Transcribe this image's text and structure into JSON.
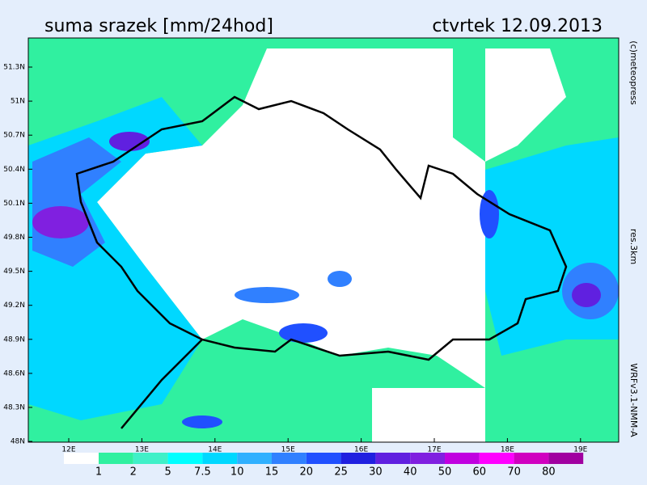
{
  "header": {
    "title": "suma srazek [mm/24hod]",
    "date": "ctvrtek 12.09.2013"
  },
  "side_labels": [
    "(c)meteopress",
    "res.3km",
    "WRFv3.1-NMM-A"
  ],
  "lat_labels": [
    "51.3N",
    "51N",
    "50.7N",
    "50.4N",
    "50.1N",
    "49.8N",
    "49.5N",
    "49.2N",
    "48.9N",
    "48.6N",
    "48.3N",
    "48N"
  ],
  "lon_labels": [
    "12E",
    "13E",
    "14E",
    "15E",
    "16E",
    "17E",
    "18E",
    "19E"
  ],
  "legend": {
    "labels": [
      "1",
      "2",
      "5",
      "7.5",
      "10",
      "15",
      "20",
      "25",
      "30",
      "40",
      "50",
      "60",
      "70",
      "80"
    ],
    "colors": [
      "#ffffff",
      "#30f0a0",
      "#40f0c8",
      "#00ffff",
      "#00d8ff",
      "#30b0ff",
      "#3080ff",
      "#2050ff",
      "#2020e0",
      "#6020e0",
      "#8020e0",
      "#c000e0",
      "#ff00ff",
      "#d000c0",
      "#a000a0"
    ]
  }
}
